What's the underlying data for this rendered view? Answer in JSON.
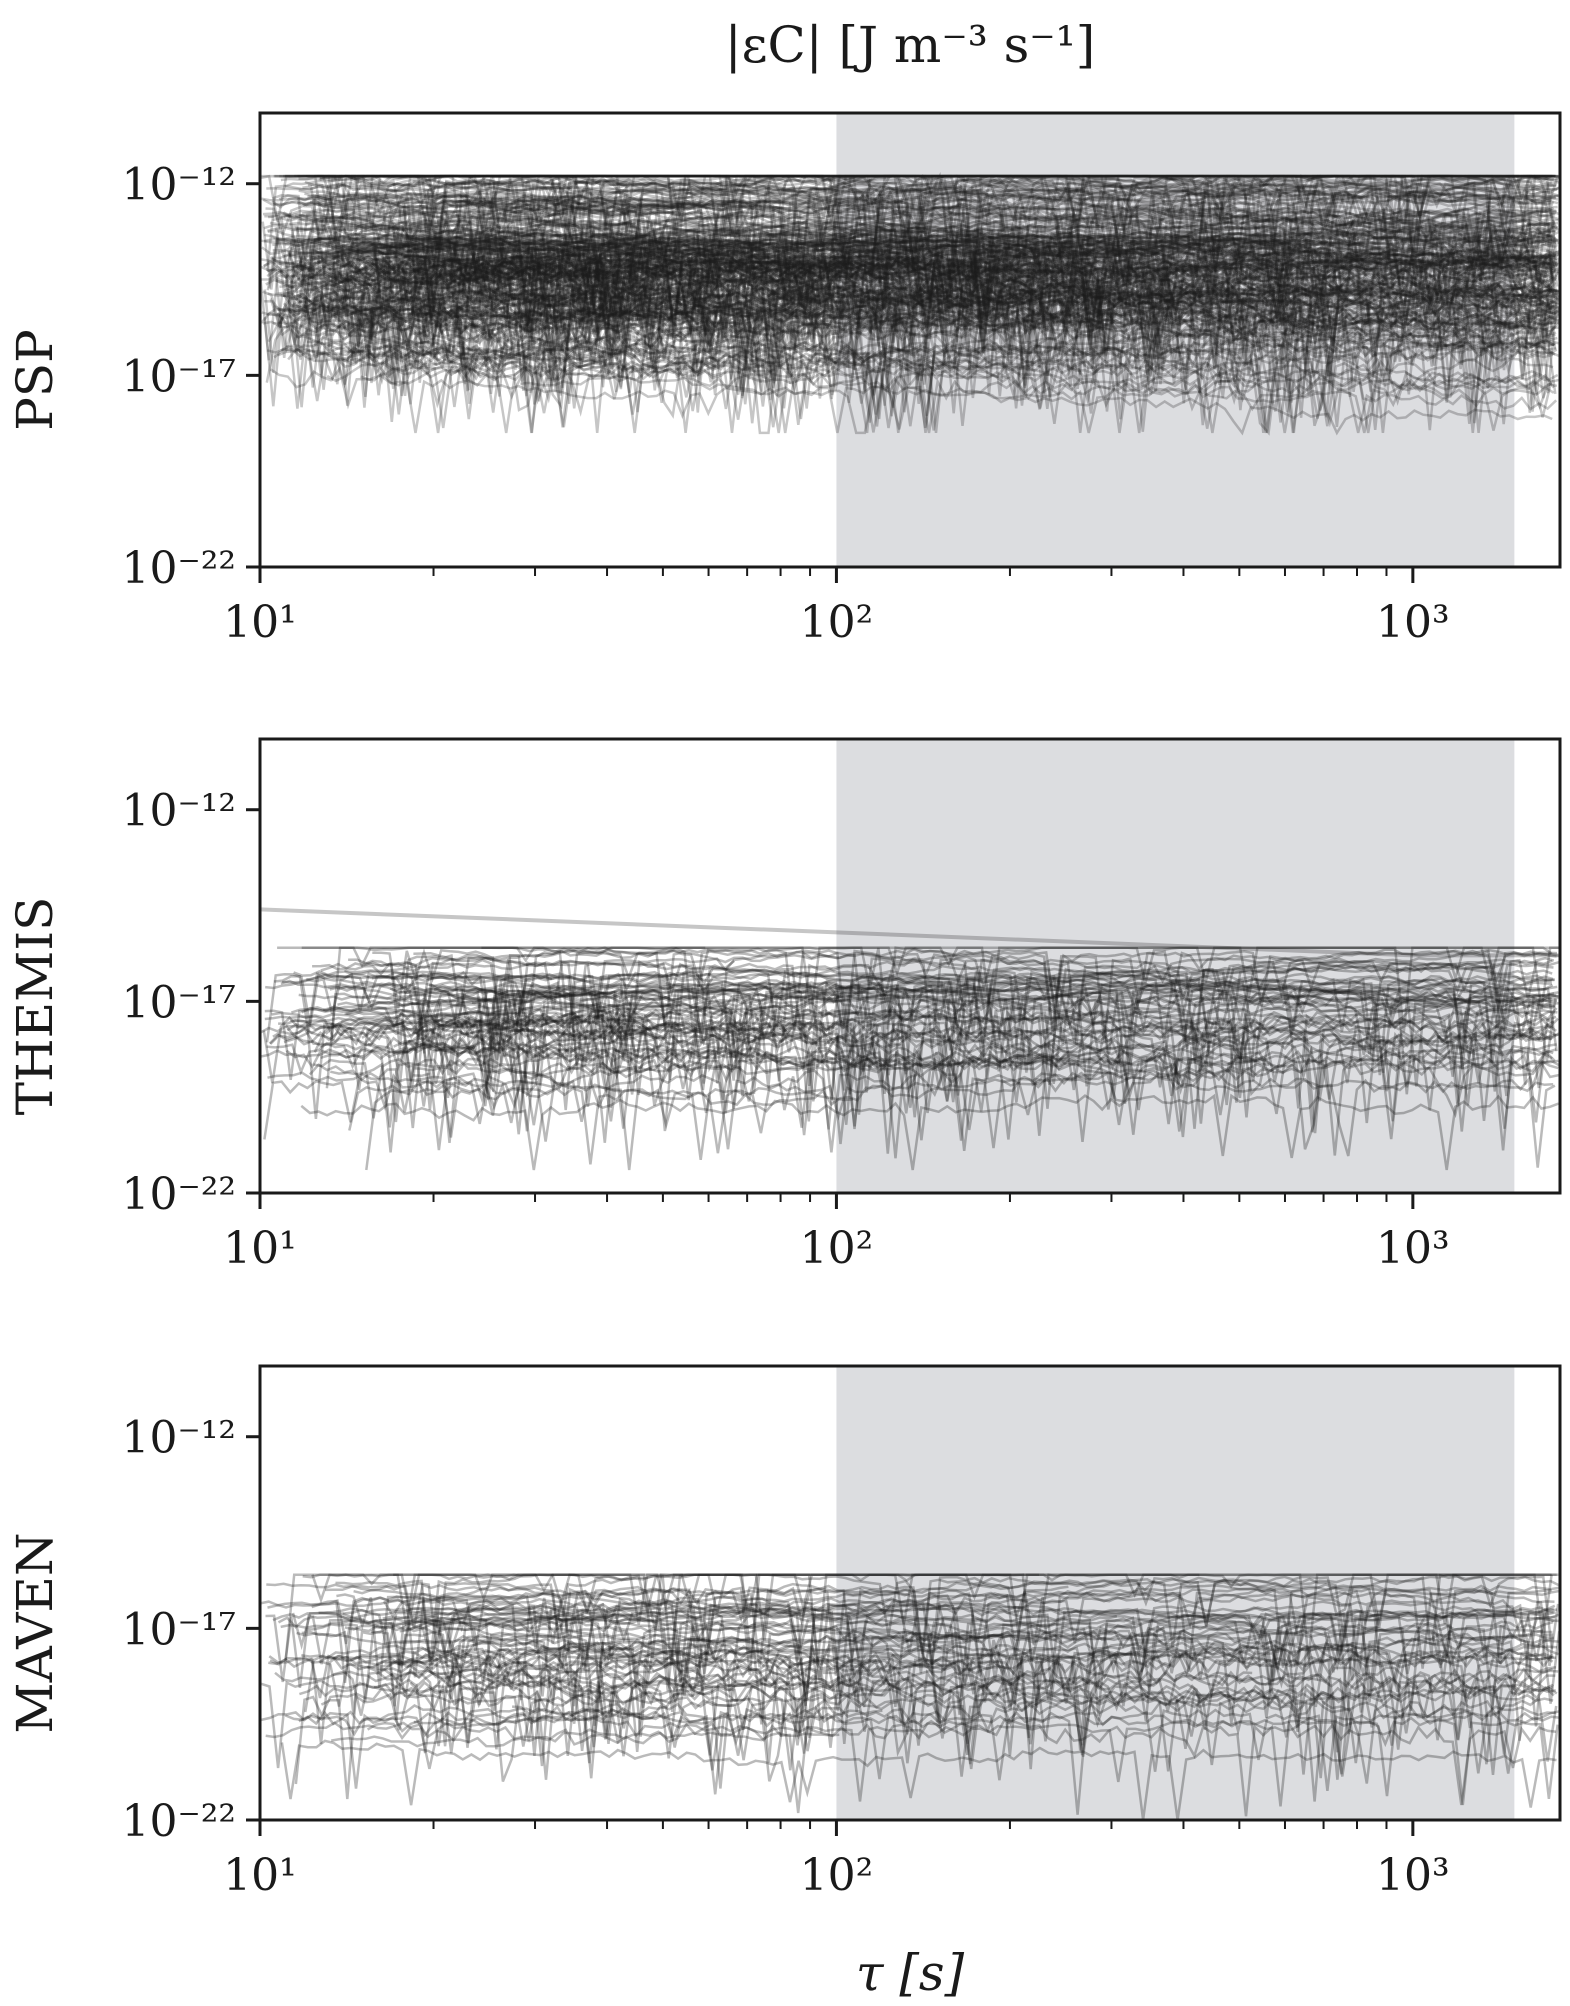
{
  "chart_data": {
    "type": "line",
    "title": "|εC| [J m⁻³ s⁻¹]",
    "xlabel": "τ [s]",
    "xscale": "log",
    "yscale": "log",
    "xlim": [
      10,
      1800
    ],
    "ylim": [
      1e-22,
      7e-11
    ],
    "grid": false,
    "legend": "none",
    "x_tick_labels": [
      "10¹",
      "10²",
      "10³"
    ],
    "y_tick_labels": [
      "10⁻¹²",
      "10⁻¹⁷",
      "10⁻²²"
    ],
    "shaded_x_range": [
      100,
      1500
    ],
    "colors": {
      "lines": "#1a1a1a",
      "shade": "#dcdde0",
      "axes": "#1a1a1a"
    },
    "panels": [
      {
        "ylabel": "PSP",
        "n_lines_approx": 300,
        "line_opacity": 0.25,
        "typical_log10_range": [
          -16.5,
          -12
        ],
        "typical_log10_median": -14,
        "min_log10_reached": -18.5
      },
      {
        "ylabel": "THEMIS",
        "n_lines_approx": 80,
        "line_opacity": 0.3,
        "typical_log10_range": [
          -19.5,
          -15.8
        ],
        "typical_log10_median": -17.5,
        "min_log10_reached": -21.4,
        "outlier_line": {
          "x": [
            10,
            100,
            1000,
            1800
          ],
          "log10_y": [
            -14.6,
            -15.2,
            -15.8,
            -15.8
          ]
        }
      },
      {
        "ylabel": "MAVEN",
        "n_lines_approx": 70,
        "line_opacity": 0.3,
        "typical_log10_range": [
          -19.5,
          -15.8
        ],
        "typical_log10_median": -17.6,
        "min_log10_reached": -22
      }
    ]
  }
}
